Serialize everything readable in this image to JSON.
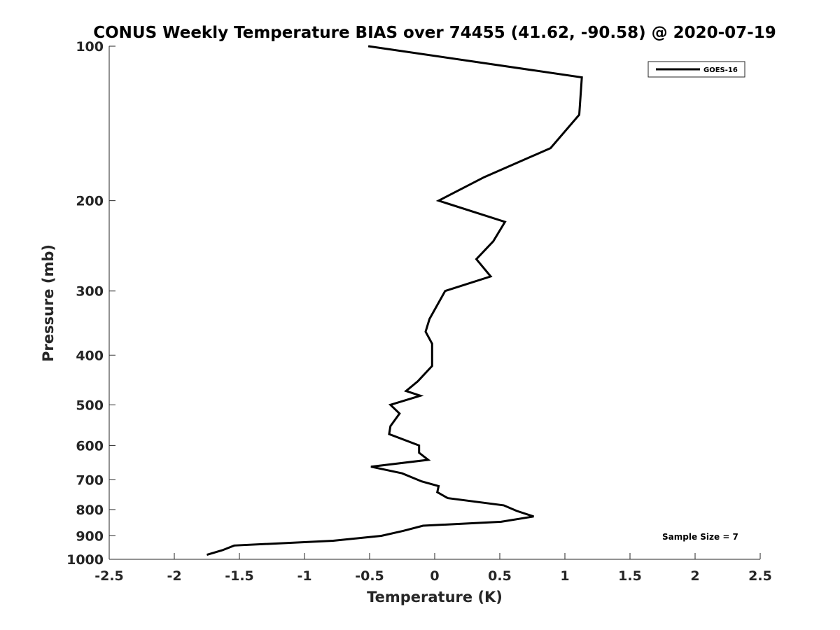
{
  "chart_data": {
    "type": "line",
    "title": "CONUS Weekly Temperature BIAS over 74455 (41.62, -90.58) @ 2020-07-19",
    "xlabel": "Temperature (K)",
    "ylabel": "Pressure (mb)",
    "xlim": [
      -2.5,
      2.5
    ],
    "ylim": [
      1000,
      100
    ],
    "yscale": "log",
    "y_reversed": true,
    "grid": false,
    "legend_position": "top-right",
    "xticks": [
      "-2.5",
      "-2",
      "-1.5",
      "-1",
      "-0.5",
      "0",
      "0.5",
      "1",
      "1.5",
      "2",
      "2.5"
    ],
    "yticks": [
      "100",
      "200",
      "300",
      "400",
      "500",
      "600",
      "700",
      "800",
      "900",
      "1000"
    ],
    "series": [
      {
        "name": "GOES-16",
        "color": "#000000",
        "points": [
          {
            "x": -0.51,
            "y": 100
          },
          {
            "x": 1.13,
            "y": 115
          },
          {
            "x": 1.11,
            "y": 136
          },
          {
            "x": 0.89,
            "y": 158
          },
          {
            "x": 0.38,
            "y": 180
          },
          {
            "x": 0.03,
            "y": 200
          },
          {
            "x": 0.54,
            "y": 220
          },
          {
            "x": 0.45,
            "y": 240
          },
          {
            "x": 0.32,
            "y": 260
          },
          {
            "x": 0.43,
            "y": 281
          },
          {
            "x": 0.08,
            "y": 300
          },
          {
            "x": -0.04,
            "y": 340
          },
          {
            "x": -0.07,
            "y": 360
          },
          {
            "x": -0.02,
            "y": 380
          },
          {
            "x": -0.02,
            "y": 420
          },
          {
            "x": -0.13,
            "y": 450
          },
          {
            "x": -0.22,
            "y": 470
          },
          {
            "x": -0.11,
            "y": 480
          },
          {
            "x": -0.34,
            "y": 500
          },
          {
            "x": -0.27,
            "y": 520
          },
          {
            "x": -0.34,
            "y": 550
          },
          {
            "x": -0.35,
            "y": 570
          },
          {
            "x": -0.12,
            "y": 600
          },
          {
            "x": -0.12,
            "y": 620
          },
          {
            "x": -0.05,
            "y": 640
          },
          {
            "x": -0.49,
            "y": 660
          },
          {
            "x": -0.25,
            "y": 680
          },
          {
            "x": -0.1,
            "y": 705
          },
          {
            "x": 0.03,
            "y": 720
          },
          {
            "x": 0.02,
            "y": 740
          },
          {
            "x": 0.1,
            "y": 760
          },
          {
            "x": 0.53,
            "y": 785
          },
          {
            "x": 0.63,
            "y": 805
          },
          {
            "x": 0.76,
            "y": 825
          },
          {
            "x": 0.51,
            "y": 845
          },
          {
            "x": -0.09,
            "y": 860
          },
          {
            "x": -0.24,
            "y": 880
          },
          {
            "x": -0.41,
            "y": 900
          },
          {
            "x": -0.78,
            "y": 920
          },
          {
            "x": -1.54,
            "y": 940
          },
          {
            "x": -1.63,
            "y": 960
          },
          {
            "x": -1.75,
            "y": 980
          }
        ]
      }
    ],
    "annotations": [
      "Sample Size = 7"
    ]
  }
}
